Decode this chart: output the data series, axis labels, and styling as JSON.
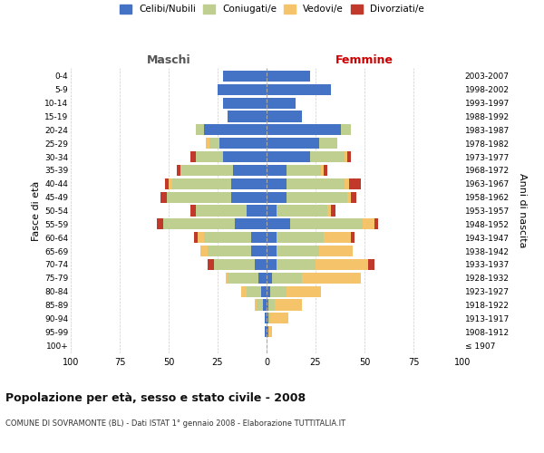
{
  "age_groups": [
    "100+",
    "95-99",
    "90-94",
    "85-89",
    "80-84",
    "75-79",
    "70-74",
    "65-69",
    "60-64",
    "55-59",
    "50-54",
    "45-49",
    "40-44",
    "35-39",
    "30-34",
    "25-29",
    "20-24",
    "15-19",
    "10-14",
    "5-9",
    "0-4"
  ],
  "birth_years": [
    "≤ 1907",
    "1908-1912",
    "1913-1917",
    "1918-1922",
    "1923-1927",
    "1928-1932",
    "1933-1937",
    "1938-1942",
    "1943-1947",
    "1948-1952",
    "1953-1957",
    "1958-1962",
    "1963-1967",
    "1968-1972",
    "1973-1977",
    "1978-1982",
    "1983-1987",
    "1988-1992",
    "1993-1997",
    "1998-2002",
    "2003-2007"
  ],
  "maschi": {
    "celibi": [
      0,
      1,
      1,
      2,
      3,
      4,
      6,
      8,
      8,
      16,
      10,
      18,
      18,
      17,
      22,
      24,
      32,
      20,
      22,
      25,
      22
    ],
    "coniugati": [
      0,
      0,
      0,
      3,
      7,
      16,
      21,
      22,
      24,
      37,
      26,
      33,
      30,
      27,
      14,
      5,
      4,
      0,
      0,
      0,
      0
    ],
    "vedovi": [
      0,
      0,
      0,
      1,
      3,
      1,
      0,
      4,
      3,
      0,
      0,
      0,
      2,
      0,
      0,
      2,
      0,
      0,
      0,
      0,
      0
    ],
    "divorziati": [
      0,
      0,
      0,
      0,
      0,
      0,
      3,
      0,
      2,
      3,
      3,
      3,
      2,
      2,
      3,
      0,
      0,
      0,
      0,
      0,
      0
    ]
  },
  "femmine": {
    "nubili": [
      0,
      1,
      1,
      1,
      2,
      3,
      5,
      5,
      5,
      12,
      5,
      10,
      10,
      10,
      22,
      27,
      38,
      18,
      15,
      33,
      22
    ],
    "coniugate": [
      0,
      0,
      1,
      3,
      8,
      15,
      20,
      22,
      24,
      37,
      26,
      31,
      30,
      18,
      18,
      9,
      5,
      0,
      0,
      0,
      0
    ],
    "vedove": [
      0,
      2,
      9,
      14,
      18,
      30,
      27,
      17,
      14,
      6,
      2,
      2,
      2,
      1,
      1,
      0,
      0,
      0,
      0,
      0,
      0
    ],
    "divorziate": [
      0,
      0,
      0,
      0,
      0,
      0,
      3,
      0,
      2,
      2,
      2,
      3,
      6,
      2,
      2,
      0,
      0,
      0,
      0,
      0,
      0
    ]
  },
  "colors": {
    "celibi": "#4472C4",
    "coniugati": "#BFCF8F",
    "vedovi": "#F5C46A",
    "divorziati": "#C0392B"
  },
  "xlim": 100,
  "title": "Popolazione per età, sesso e stato civile - 2008",
  "subtitle": "COMUNE DI SOVRAMONTE (BL) - Dati ISTAT 1° gennaio 2008 - Elaborazione TUTTITALIA.IT",
  "ylabel_left": "Fasce di età",
  "ylabel_right": "Anni di nascita",
  "xlabel_left": "Maschi",
  "xlabel_right": "Femmine",
  "bg_color": "#ffffff",
  "grid_color": "#cccccc",
  "spine_color": "#aaaaaa",
  "label_color_maschi": "#555555",
  "label_color_femmine": "#cc0000"
}
